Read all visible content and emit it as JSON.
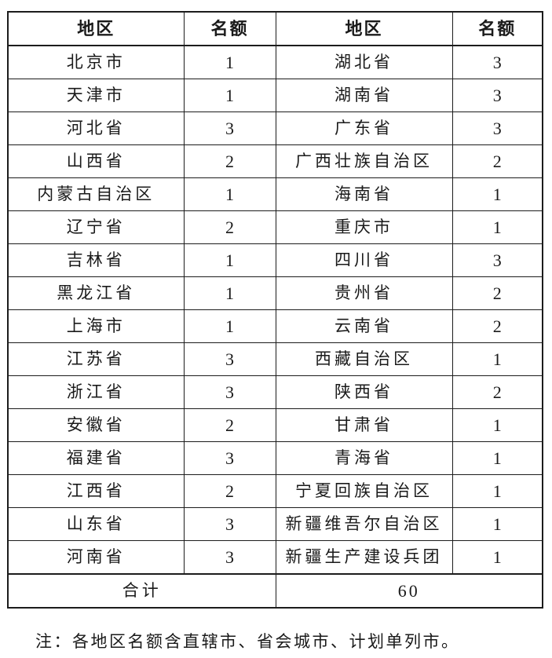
{
  "table": {
    "headers": [
      "地区",
      "名额",
      "地区",
      "名额"
    ],
    "rows": [
      [
        "北京市",
        "1",
        "湖北省",
        "3"
      ],
      [
        "天津市",
        "1",
        "湖南省",
        "3"
      ],
      [
        "河北省",
        "3",
        "广东省",
        "3"
      ],
      [
        "山西省",
        "2",
        "广西壮族自治区",
        "2"
      ],
      [
        "内蒙古自治区",
        "1",
        "海南省",
        "1"
      ],
      [
        "辽宁省",
        "2",
        "重庆市",
        "1"
      ],
      [
        "吉林省",
        "1",
        "四川省",
        "3"
      ],
      [
        "黑龙江省",
        "1",
        "贵州省",
        "2"
      ],
      [
        "上海市",
        "1",
        "云南省",
        "2"
      ],
      [
        "江苏省",
        "3",
        "西藏自治区",
        "1"
      ],
      [
        "浙江省",
        "3",
        "陕西省",
        "2"
      ],
      [
        "安徽省",
        "2",
        "甘肃省",
        "1"
      ],
      [
        "福建省",
        "3",
        "青海省",
        "1"
      ],
      [
        "江西省",
        "2",
        "宁夏回族自治区",
        "1"
      ],
      [
        "山东省",
        "3",
        "新疆维吾尔自治区",
        "1"
      ],
      [
        "河南省",
        "3",
        "新疆生产建设兵团",
        "1"
      ]
    ],
    "footer": {
      "label": "合计",
      "total": "60"
    }
  },
  "note": "注：各地区名额含直辖市、省会城市、计划单列市。",
  "colors": {
    "border": "#1c1c1c",
    "text": "#1a1a1a",
    "background": "#ffffff"
  }
}
